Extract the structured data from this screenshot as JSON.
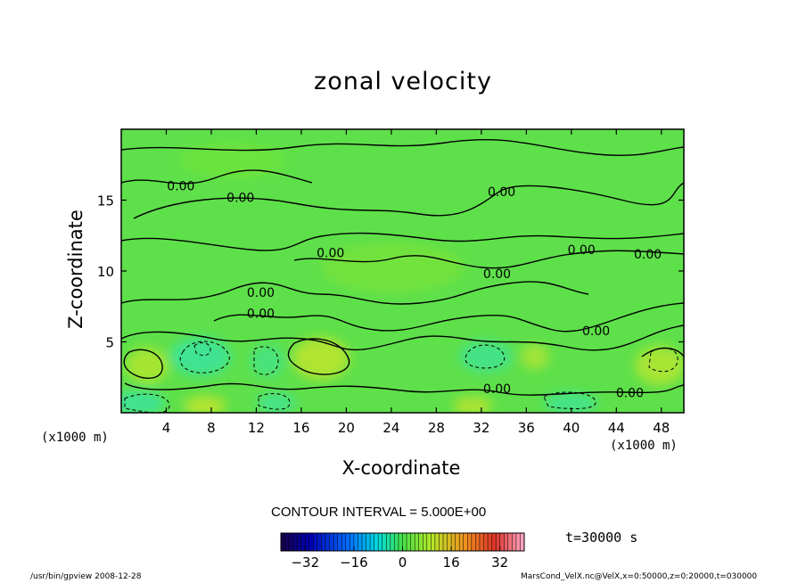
{
  "chart_data": {
    "type": "contour",
    "title": "zonal velocity",
    "xlabel": "X-coordinate",
    "ylabel": "Z-coordinate",
    "x_unit": "(x1000 m)",
    "y_unit": "(x1000 m)",
    "xlim": [
      0,
      50
    ],
    "ylim": [
      0,
      20
    ],
    "x_ticks": [
      4,
      8,
      12,
      16,
      20,
      24,
      28,
      32,
      36,
      40,
      44,
      48
    ],
    "y_ticks": [
      5,
      10,
      15
    ],
    "contour_interval_text": "CONTOUR INTERVAL = 5.000E+00",
    "contour_labels": [
      "0.00",
      "0.00",
      "0.00",
      "0.00",
      "0.00",
      "0.00",
      "0.00",
      "0.00",
      "0.00",
      "0.00",
      "0.00",
      "0.00"
    ],
    "colorbar": {
      "min": -40,
      "max": 40,
      "ticks": [
        -32,
        -16,
        0,
        16,
        32
      ],
      "tick_labels": [
        "−32",
        "−16",
        "0",
        "16",
        "32"
      ]
    },
    "time_label": "t=30000 s"
  },
  "footer": {
    "left": "/usr/bin/gpview  2008-12-28",
    "right": "MarsCond_VelX.nc@VelX,x=0:50000,z=0:20000,t=030000"
  }
}
